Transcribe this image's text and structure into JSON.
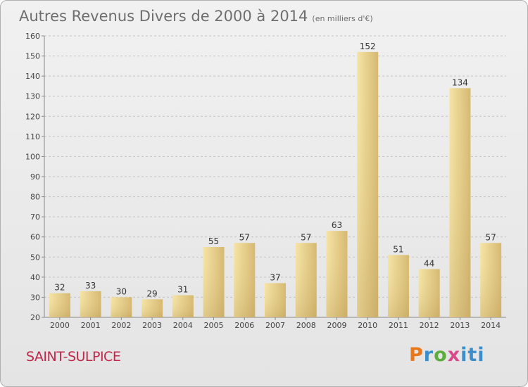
{
  "header": {
    "title": "Autres Revenus Divers de 2000 à 2014",
    "subtitle": "(en milliers d'€)"
  },
  "footer": {
    "place": "SAINT-SULPICE",
    "logo": "Proxiti"
  },
  "colors": {
    "bar_light": "#f6e4a6",
    "bar_dark": "#cdb06a",
    "place": "#c0284a"
  },
  "chart_data": {
    "type": "bar",
    "categories": [
      "2000",
      "2001",
      "2002",
      "2003",
      "2004",
      "2005",
      "2006",
      "2007",
      "2008",
      "2009",
      "2010",
      "2011",
      "2012",
      "2013",
      "2014"
    ],
    "values": [
      32,
      33,
      30,
      29,
      31,
      55,
      57,
      37,
      57,
      63,
      152,
      51,
      44,
      134,
      57
    ],
    "ylim": [
      20,
      160
    ],
    "yticks": [
      20,
      30,
      40,
      50,
      60,
      70,
      80,
      90,
      100,
      110,
      120,
      130,
      140,
      150,
      160
    ],
    "grid": true,
    "title": "Autres Revenus Divers de 2000 à 2014",
    "subtitle": "(en milliers d'€)"
  }
}
